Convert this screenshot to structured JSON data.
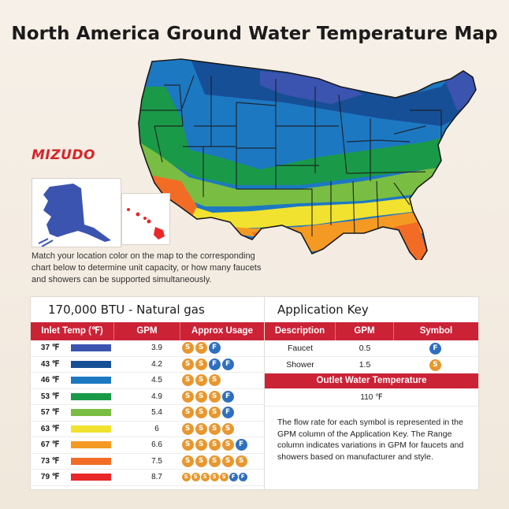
{
  "title": "North America Ground Water Temperature Map",
  "brand": "MIZUDO",
  "description": "Match your location color on the map to the corresponding chart below to determine unit capacity, or how many faucets and showers can be supported simultaneously.",
  "colors": {
    "c37": "#3b54b0",
    "c43": "#174f97",
    "c46": "#1d78c2",
    "c53": "#1a9a48",
    "c57": "#79be43",
    "c63": "#f1e230",
    "c67": "#f49a22",
    "c73": "#f26c26",
    "c79": "#e8282a",
    "accent": "#cc2236"
  },
  "left_panel": {
    "title": "170,000 BTU - Natural gas",
    "headers": [
      "Inlet Temp (℉)",
      "GPM",
      "Approx Usage"
    ],
    "rows": [
      {
        "temp": "37 ℉",
        "color": "#3b54b0",
        "gpm": "3.9",
        "usage": [
          "shower",
          "shower",
          "faucet"
        ]
      },
      {
        "temp": "43 ℉",
        "color": "#174f97",
        "gpm": "4.2",
        "usage": [
          "shower",
          "shower",
          "faucet",
          "faucet"
        ]
      },
      {
        "temp": "46 ℉",
        "color": "#1d78c2",
        "gpm": "4.5",
        "usage": [
          "shower",
          "shower",
          "shower"
        ]
      },
      {
        "temp": "53 ℉",
        "color": "#1a9a48",
        "gpm": "4.9",
        "usage": [
          "shower",
          "shower",
          "shower",
          "faucet"
        ]
      },
      {
        "temp": "57 ℉",
        "color": "#79be43",
        "gpm": "5.4",
        "usage": [
          "shower",
          "shower",
          "shower",
          "faucet"
        ]
      },
      {
        "temp": "63 ℉",
        "color": "#f1e230",
        "gpm": "6",
        "usage": [
          "shower",
          "shower",
          "shower",
          "shower"
        ]
      },
      {
        "temp": "67 ℉",
        "color": "#f49a22",
        "gpm": "6.6",
        "usage": [
          "shower",
          "shower",
          "shower",
          "shower",
          "faucet"
        ]
      },
      {
        "temp": "73 ℉",
        "color": "#f26c26",
        "gpm": "7.5",
        "usage": [
          "shower",
          "shower",
          "shower",
          "shower",
          "shower"
        ]
      },
      {
        "temp": "79 ℉",
        "color": "#e8282a",
        "gpm": "8.7",
        "usage": [
          "shower",
          "shower",
          "shower",
          "shower",
          "shower",
          "faucet",
          "faucet"
        ]
      }
    ]
  },
  "right_panel": {
    "title": "Application Key",
    "headers": [
      "Description",
      "GPM",
      "Symbol"
    ],
    "rows": [
      {
        "description": "Faucet",
        "gpm": "0.5",
        "symbol": "faucet"
      },
      {
        "description": "Shower",
        "gpm": "1.5",
        "symbol": "shower"
      }
    ],
    "outlet_label": "Outlet Water Temperature",
    "outlet_value": "110 ℉",
    "note": "The flow rate for each symbol is represented in the GPM column of the Application Key. The Range column indicates variations in GPM for faucets and showers based on manufacturer and style."
  },
  "icons": {
    "shower": "shower-icon",
    "faucet": "faucet-icon"
  }
}
